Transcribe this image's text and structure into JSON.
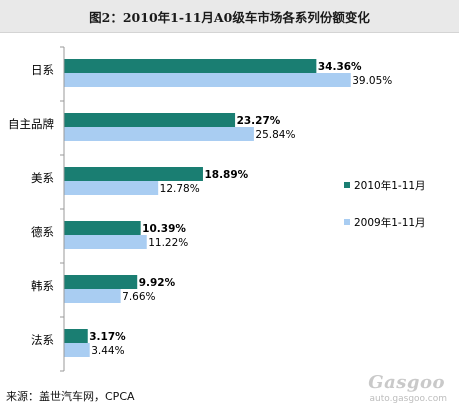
{
  "title": "图2：2010年1-11月A0级车市场各系列份额变化",
  "source": "来源：盖世汽车网，CPCA",
  "watermark": {
    "logo": "Gasgoo",
    "url": "auto.gasgoo.com"
  },
  "colors": {
    "series_2010": "#1a7e72",
    "series_2009": "#a9cdf2",
    "axis": "#999999"
  },
  "chart_data": {
    "type": "bar",
    "orientation": "horizontal",
    "title": "图2：2010年1-11月A0级车市场各系列份额变化",
    "categories": [
      "日系",
      "自主品牌",
      "美系",
      "德系",
      "韩系",
      "法系"
    ],
    "series": [
      {
        "name": "2010年1-11月",
        "values": [
          34.36,
          23.27,
          18.89,
          10.39,
          9.92,
          3.17
        ],
        "labels": [
          "34.36%",
          "23.27%",
          "18.89%",
          "10.39%",
          "9.92%",
          "3.17%"
        ]
      },
      {
        "name": "2009年1-11月",
        "values": [
          39.05,
          25.84,
          12.78,
          11.22,
          7.66,
          3.44
        ],
        "labels": [
          "39.05%",
          "25.84%",
          "12.78%",
          "11.22%",
          "7.66%",
          "3.44%"
        ]
      }
    ],
    "xlim": [
      0,
      40
    ],
    "grid": false,
    "legend": "right"
  }
}
